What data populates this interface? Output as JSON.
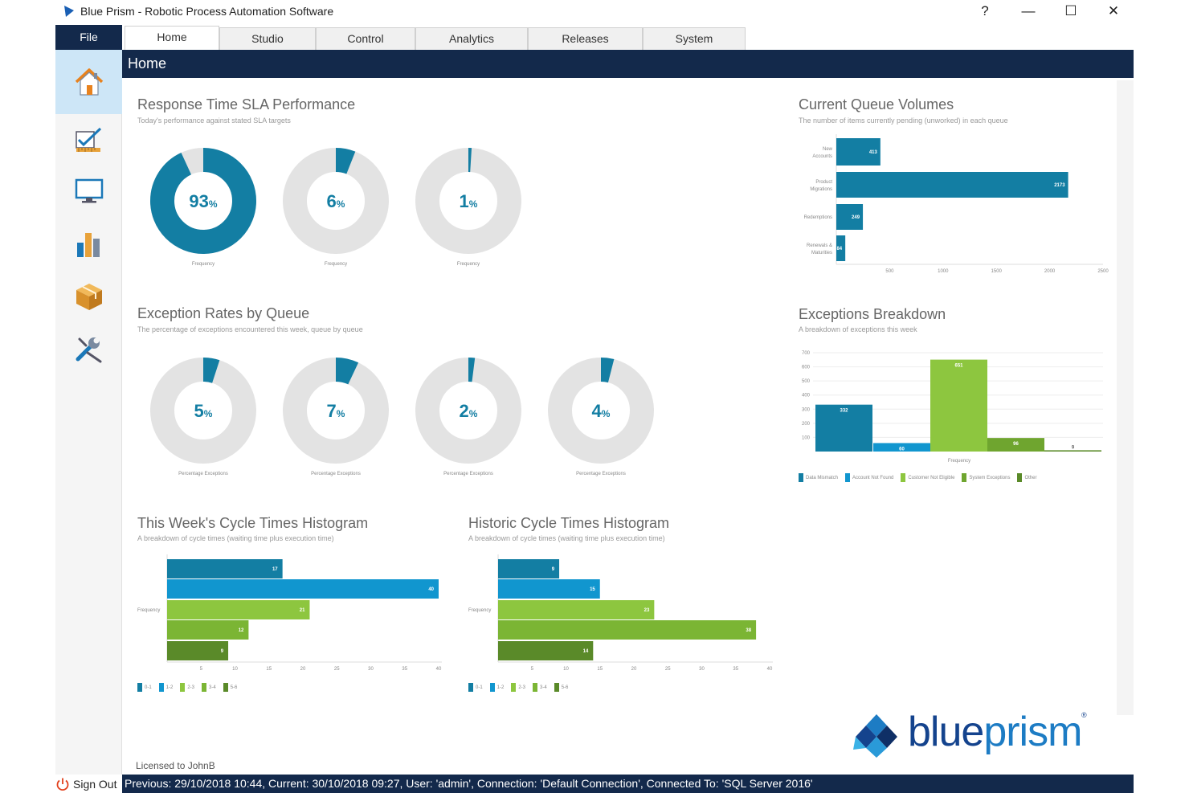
{
  "window": {
    "title": "Blue Prism - Robotic Process Automation Software",
    "help": "?",
    "minimize": "—",
    "maximize": "☐",
    "close": "✕"
  },
  "menu": {
    "file": "File",
    "tabs": [
      {
        "label": "Home",
        "active": true
      },
      {
        "label": "Studio"
      },
      {
        "label": "Control"
      },
      {
        "label": "Analytics"
      },
      {
        "label": "Releases"
      },
      {
        "label": "System"
      }
    ]
  },
  "sidebar": {
    "items": [
      {
        "icon": "home-icon",
        "active": true
      },
      {
        "icon": "studio-edit-icon"
      },
      {
        "icon": "monitor-icon"
      },
      {
        "icon": "analytics-bar-icon"
      },
      {
        "icon": "package-box-icon"
      },
      {
        "icon": "tools-wrench-icon"
      }
    ]
  },
  "page": {
    "title": "Home"
  },
  "colors": {
    "navy": "#13294b",
    "teal": "#137ea3",
    "cyan": "#1196cf",
    "lime": "#8dc63f",
    "green": "#6fa52f",
    "dgreen": "#5a8a29",
    "gray": "#e3e3e3"
  },
  "sla": {
    "title": "Response Time SLA Performance",
    "subtitle": "Today's performance against stated SLA targets",
    "donuts": [
      {
        "value": 93,
        "label": "93",
        "unit": "%",
        "caption": "Frequency"
      },
      {
        "value": 6,
        "label": "6",
        "unit": "%",
        "caption": "Frequency"
      },
      {
        "value": 1,
        "label": "1",
        "unit": "%",
        "caption": "Frequency"
      }
    ]
  },
  "exceptions_rates": {
    "title": "Exception Rates by Queue",
    "subtitle": "The percentage of exceptions encountered this week, queue by queue",
    "donuts": [
      {
        "value": 5,
        "label": "5",
        "unit": "%",
        "caption": "Percentage Exceptions"
      },
      {
        "value": 7,
        "label": "7",
        "unit": "%",
        "caption": "Percentage Exceptions"
      },
      {
        "value": 2,
        "label": "2",
        "unit": "%",
        "caption": "Percentage Exceptions"
      },
      {
        "value": 4,
        "label": "4",
        "unit": "%",
        "caption": "Percentage Exceptions"
      }
    ]
  },
  "queue_volumes": {
    "title": "Current Queue Volumes",
    "subtitle": "The number of items currently pending (unworked) in each queue",
    "chart_data": {
      "type": "bar",
      "orientation": "horizontal",
      "categories": [
        [
          "New",
          "Accounts"
        ],
        [
          "Product",
          "Migrations"
        ],
        [
          "Redemptions"
        ],
        [
          "Renewals &",
          "Maturities"
        ]
      ],
      "values": [
        413,
        2173,
        249,
        84
      ],
      "xlim": [
        0,
        2500
      ],
      "xticks": [
        "500",
        "1000",
        "1500",
        "2000",
        "2500"
      ]
    }
  },
  "exceptions_breakdown": {
    "title": "Exceptions Breakdown",
    "subtitle": "A breakdown of exceptions this week",
    "chart_data": {
      "type": "bar",
      "categories": [
        "Data Mismatch",
        "Account Not Found",
        "Customer Not Eligible",
        "System Exceptions",
        "Other"
      ],
      "values": [
        332,
        60,
        651,
        96,
        9
      ],
      "ylim": [
        0,
        700
      ],
      "yticks": [
        "700",
        "600",
        "500",
        "400",
        "300",
        "200",
        "100"
      ],
      "xlabel": "Frequency",
      "series_colors": [
        "#137ea3",
        "#1196cf",
        "#8dc63f",
        "#6fa52f",
        "#5a8a29"
      ]
    }
  },
  "week_hist": {
    "title": "This Week's Cycle Times Histogram",
    "subtitle": "A breakdown of cycle times (waiting time plus execution time)",
    "chart_data": {
      "type": "bar",
      "orientation": "horizontal",
      "categories": [
        "0-1",
        "1-2",
        "2-3",
        "3-4",
        "5-6"
      ],
      "values": [
        17,
        40,
        21,
        12,
        9
      ],
      "ylabel": "Frequency",
      "xlim": [
        0,
        40
      ],
      "xticks": [
        "5",
        "10",
        "15",
        "20",
        "25",
        "30",
        "35",
        "40"
      ]
    }
  },
  "historic_hist": {
    "title": "Historic Cycle Times Histogram",
    "subtitle": "A breakdown of cycle times (waiting time plus execution time)",
    "chart_data": {
      "type": "bar",
      "orientation": "horizontal",
      "categories": [
        "0-1",
        "1-2",
        "2-3",
        "3-4",
        "5-6"
      ],
      "values": [
        9,
        15,
        23,
        38,
        14
      ],
      "ylabel": "Frequency",
      "xlim": [
        0,
        40
      ],
      "xticks": [
        "5",
        "10",
        "15",
        "20",
        "25",
        "30",
        "35",
        "40"
      ]
    }
  },
  "footer": {
    "licensed": "Licensed to JohnB",
    "signout": "Sign Out",
    "status": "Previous: 29/10/2018 10:44, Current: 30/10/2018 09:27, User: 'admin', Connection: 'Default Connection', Connected To: 'SQL Server 2016'"
  },
  "logo": {
    "text_bold": "blue",
    "text_light": "prism",
    "reg": "®"
  }
}
